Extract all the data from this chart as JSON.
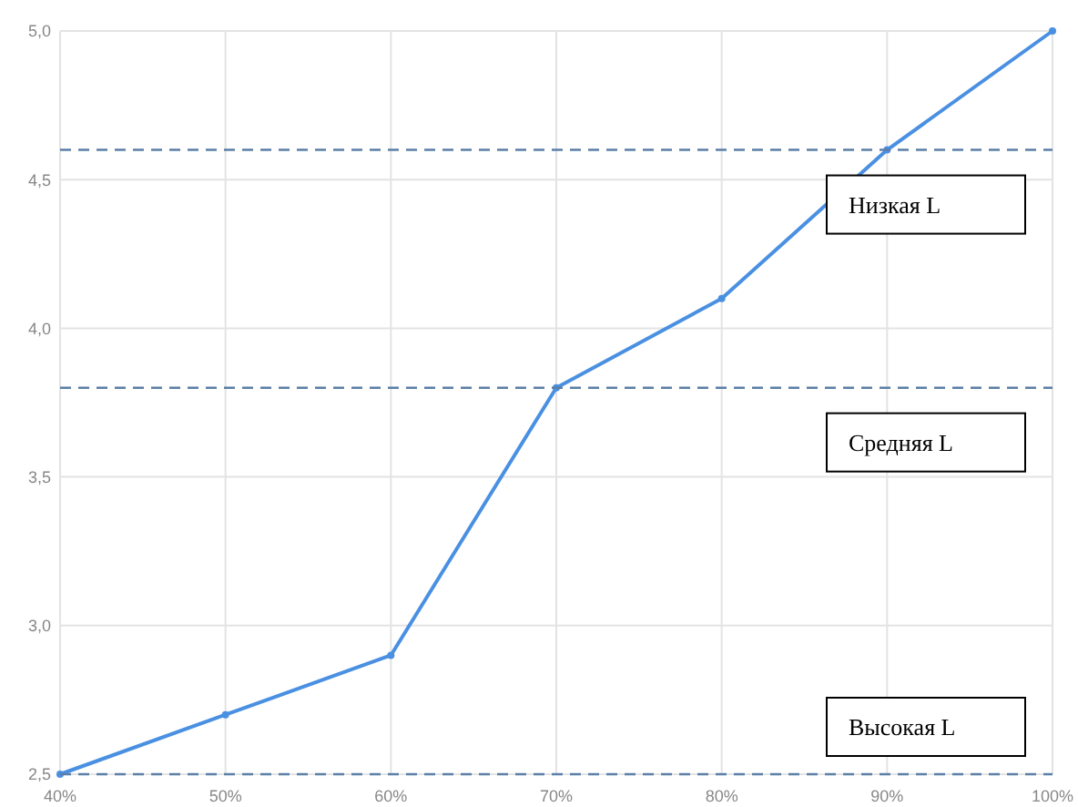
{
  "chart_data": {
    "type": "line",
    "x": [
      40,
      50,
      60,
      70,
      80,
      90,
      100
    ],
    "series": [
      {
        "color": "#4a90e2",
        "values": [
          2.5,
          2.7,
          2.9,
          3.8,
          4.1,
          4.6,
          5.0
        ]
      }
    ],
    "xlim": [
      40,
      100
    ],
    "xticks": [
      {
        "value": 40,
        "label": "40%"
      },
      {
        "value": 50,
        "label": "50%"
      },
      {
        "value": 60,
        "label": "60%"
      },
      {
        "value": 70,
        "label": "70%"
      },
      {
        "value": 80,
        "label": "80%"
      },
      {
        "value": 90,
        "label": "90%"
      },
      {
        "value": 100,
        "label": "100%"
      }
    ],
    "ylim": [
      2.5,
      5.0
    ],
    "yticks": [
      {
        "value": 2.5,
        "label": "2,5"
      },
      {
        "value": 3.0,
        "label": "3,0"
      },
      {
        "value": 3.5,
        "label": "3,5"
      },
      {
        "value": 4.0,
        "label": "4,0"
      },
      {
        "value": 4.5,
        "label": "4,5"
      },
      {
        "value": 5.0,
        "label": "5,0"
      }
    ],
    "grid": true,
    "marker": "circle",
    "line_style": "solid",
    "ref_lines": [
      {
        "axis": "y",
        "value": 4.6,
        "label": "Низкая L",
        "color": "#5b7fa6",
        "line_style": "dashed"
      },
      {
        "axis": "y",
        "value": 3.8,
        "label": "Средняя L",
        "color": "#5b7fa6",
        "line_style": "dashed"
      },
      {
        "axis": "y",
        "value": 2.5,
        "label": "Высокая L",
        "color": "#5b7fa6",
        "line_style": "dashed"
      }
    ]
  }
}
